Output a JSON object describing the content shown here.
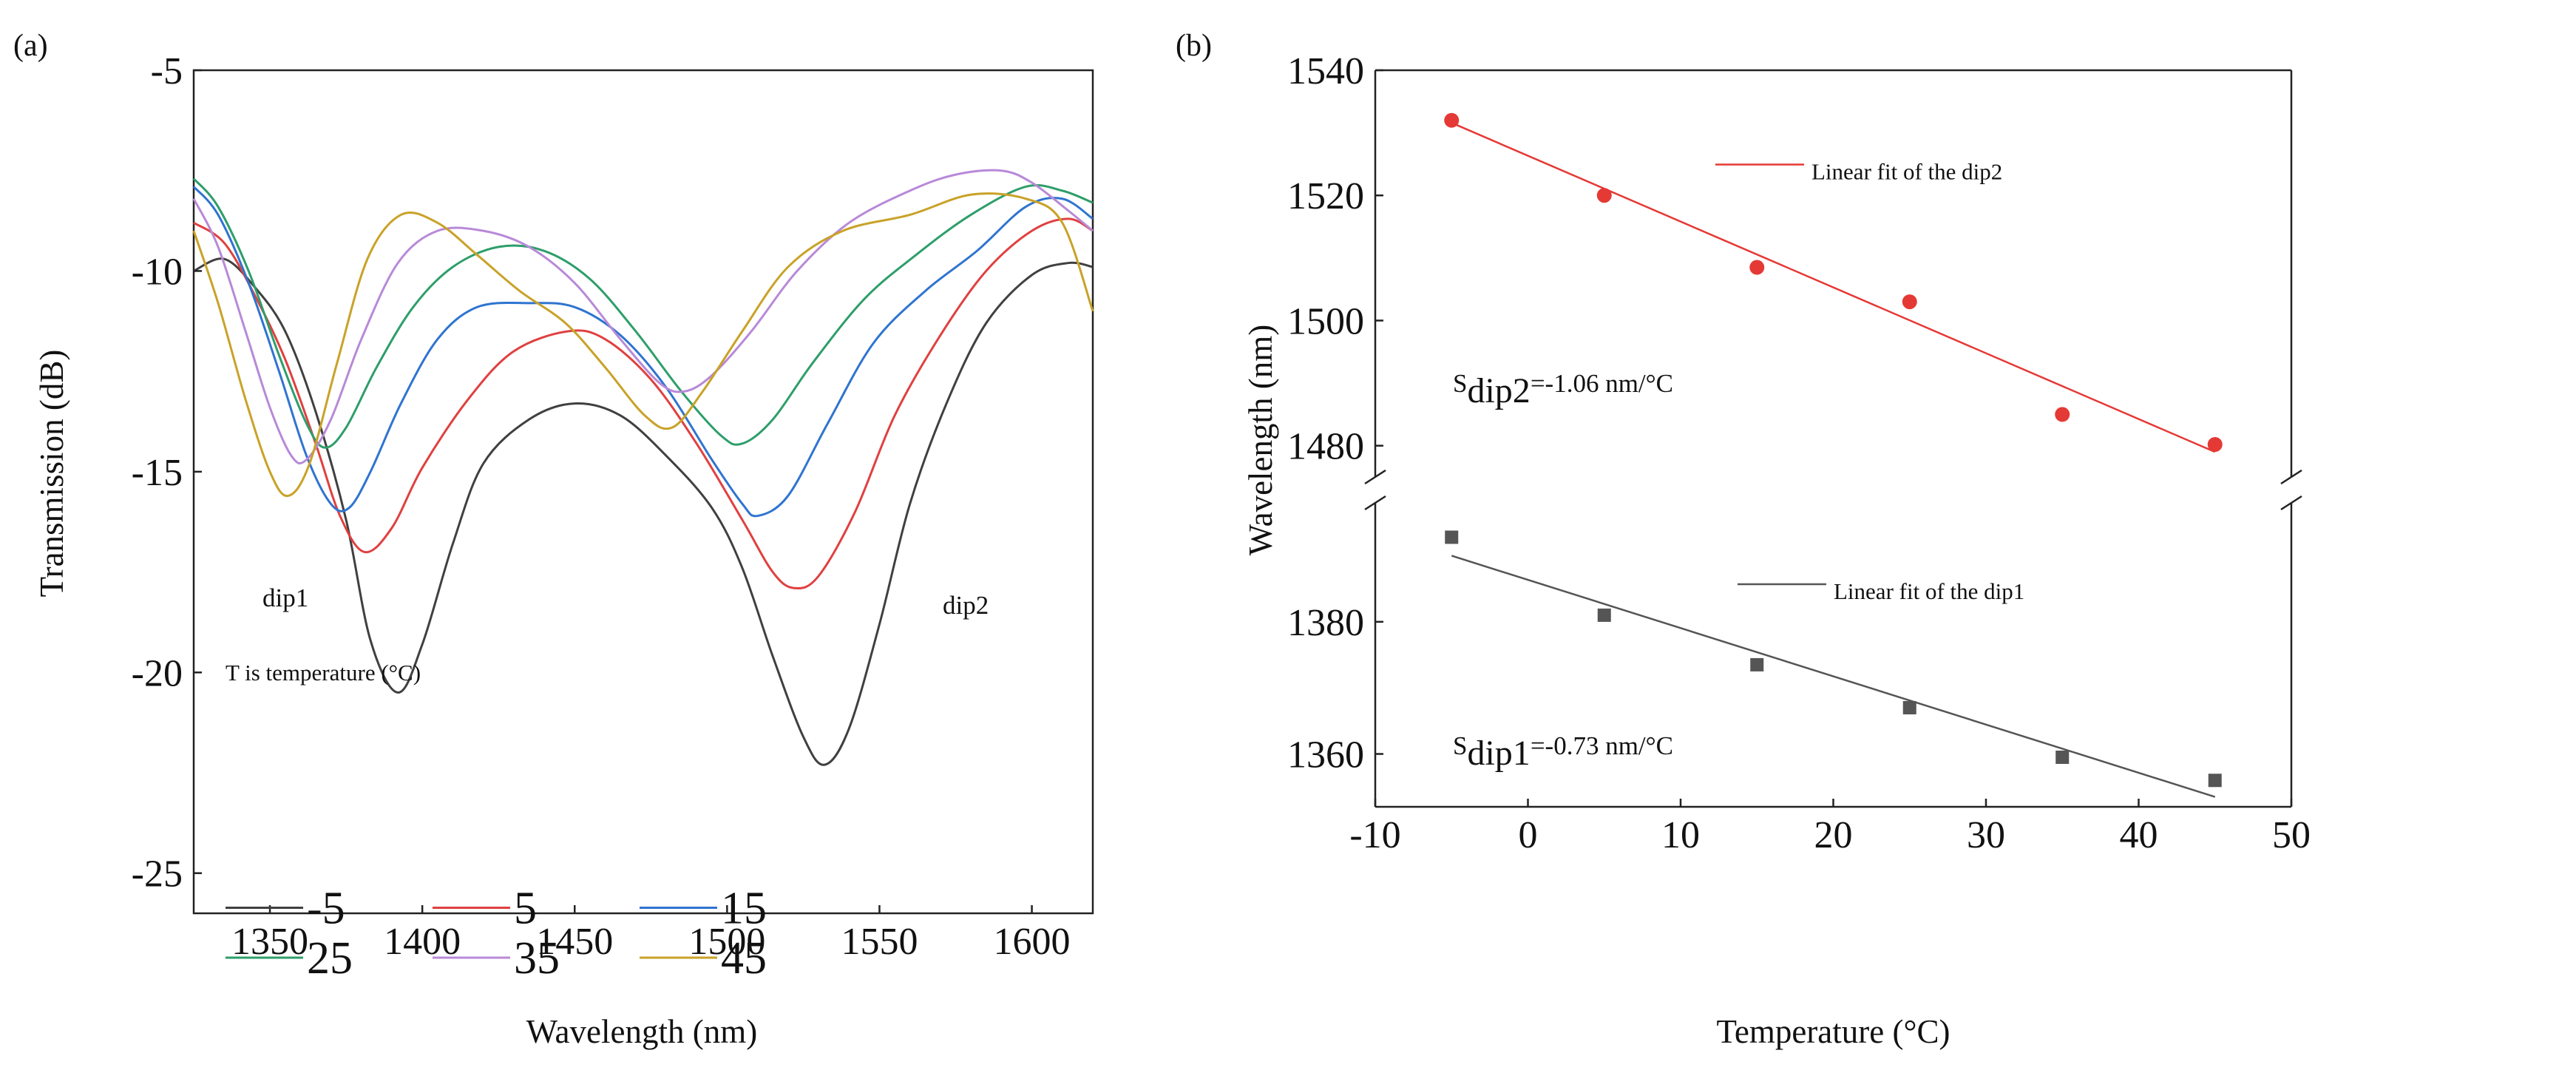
{
  "chart_data": [
    {
      "panel": "(a)",
      "type": "line",
      "xlabel": "Wavelength (nm)",
      "ylabel": "Transmission (dB)",
      "xlim": [
        1325,
        1620
      ],
      "ylim": [
        -26,
        -5
      ],
      "xticks": [
        1350,
        1400,
        1450,
        1500,
        1550,
        1600
      ],
      "yticks": [
        -25,
        -20,
        -15,
        -10,
        -5
      ],
      "annotations": [
        "dip1",
        "dip2"
      ],
      "legend_title": "T is temperature (°C)",
      "series": [
        {
          "name": "-5",
          "color": "#404040",
          "points": [
            [
              1325,
              -10.0
            ],
            [
              1335,
              -9.7
            ],
            [
              1345,
              -10.4
            ],
            [
              1355,
              -11.5
            ],
            [
              1365,
              -13.5
            ],
            [
              1375,
              -16.2
            ],
            [
              1383,
              -19.2
            ],
            [
              1392,
              -20.5
            ],
            [
              1400,
              -19.3
            ],
            [
              1410,
              -16.8
            ],
            [
              1420,
              -14.8
            ],
            [
              1435,
              -13.7
            ],
            [
              1450,
              -13.3
            ],
            [
              1465,
              -13.6
            ],
            [
              1480,
              -14.6
            ],
            [
              1495,
              -15.9
            ],
            [
              1505,
              -17.4
            ],
            [
              1515,
              -19.6
            ],
            [
              1525,
              -21.6
            ],
            [
              1532,
              -22.3
            ],
            [
              1540,
              -21.4
            ],
            [
              1550,
              -18.8
            ],
            [
              1560,
              -15.8
            ],
            [
              1572,
              -13.3
            ],
            [
              1585,
              -11.3
            ],
            [
              1600,
              -10.1
            ],
            [
              1612,
              -9.8
            ],
            [
              1620,
              -9.9
            ]
          ]
        },
        {
          "name": "5",
          "color": "#e04040",
          "points": [
            [
              1325,
              -8.8
            ],
            [
              1335,
              -9.3
            ],
            [
              1345,
              -10.6
            ],
            [
              1355,
              -12.2
            ],
            [
              1365,
              -14.3
            ],
            [
              1373,
              -16.1
            ],
            [
              1381,
              -17.0
            ],
            [
              1390,
              -16.4
            ],
            [
              1400,
              -14.9
            ],
            [
              1415,
              -13.2
            ],
            [
              1430,
              -12.0
            ],
            [
              1448,
              -11.5
            ],
            [
              1460,
              -11.7
            ],
            [
              1475,
              -12.7
            ],
            [
              1490,
              -14.3
            ],
            [
              1505,
              -16.2
            ],
            [
              1515,
              -17.5
            ],
            [
              1522,
              -17.9
            ],
            [
              1530,
              -17.6
            ],
            [
              1542,
              -16.0
            ],
            [
              1555,
              -13.6
            ],
            [
              1570,
              -11.6
            ],
            [
              1585,
              -10.0
            ],
            [
              1600,
              -9.0
            ],
            [
              1612,
              -8.7
            ],
            [
              1620,
              -9.0
            ]
          ]
        },
        {
          "name": "15",
          "color": "#2f74d0",
          "points": [
            [
              1325,
              -7.9
            ],
            [
              1333,
              -8.6
            ],
            [
              1343,
              -10.3
            ],
            [
              1353,
              -12.5
            ],
            [
              1362,
              -14.6
            ],
            [
              1370,
              -15.8
            ],
            [
              1376,
              -15.9
            ],
            [
              1383,
              -15.0
            ],
            [
              1393,
              -13.3
            ],
            [
              1405,
              -11.7
            ],
            [
              1418,
              -10.9
            ],
            [
              1435,
              -10.8
            ],
            [
              1450,
              -10.9
            ],
            [
              1465,
              -11.6
            ],
            [
              1480,
              -12.9
            ],
            [
              1495,
              -14.7
            ],
            [
              1505,
              -15.8
            ],
            [
              1510,
              -16.1
            ],
            [
              1520,
              -15.6
            ],
            [
              1533,
              -13.8
            ],
            [
              1548,
              -11.8
            ],
            [
              1565,
              -10.5
            ],
            [
              1582,
              -9.5
            ],
            [
              1598,
              -8.4
            ],
            [
              1610,
              -8.2
            ],
            [
              1620,
              -8.7
            ]
          ]
        },
        {
          "name": "25",
          "color": "#2e9e6a",
          "points": [
            [
              1325,
              -7.7
            ],
            [
              1333,
              -8.4
            ],
            [
              1343,
              -10.0
            ],
            [
              1353,
              -12.1
            ],
            [
              1362,
              -13.8
            ],
            [
              1368,
              -14.4
            ],
            [
              1375,
              -13.9
            ],
            [
              1385,
              -12.4
            ],
            [
              1397,
              -10.9
            ],
            [
              1410,
              -9.9
            ],
            [
              1425,
              -9.4
            ],
            [
              1440,
              -9.5
            ],
            [
              1455,
              -10.2
            ],
            [
              1470,
              -11.5
            ],
            [
              1485,
              -13.0
            ],
            [
              1498,
              -14.1
            ],
            [
              1505,
              -14.3
            ],
            [
              1515,
              -13.7
            ],
            [
              1528,
              -12.3
            ],
            [
              1545,
              -10.7
            ],
            [
              1562,
              -9.6
            ],
            [
              1580,
              -8.6
            ],
            [
              1598,
              -7.9
            ],
            [
              1610,
              -8.0
            ],
            [
              1620,
              -8.3
            ]
          ]
        },
        {
          "name": "35",
          "color": "#b889d8",
          "points": [
            [
              1325,
              -8.2
            ],
            [
              1333,
              -9.4
            ],
            [
              1342,
              -11.5
            ],
            [
              1350,
              -13.4
            ],
            [
              1357,
              -14.6
            ],
            [
              1362,
              -14.7
            ],
            [
              1370,
              -13.7
            ],
            [
              1380,
              -11.7
            ],
            [
              1392,
              -9.8
            ],
            [
              1405,
              -9.0
            ],
            [
              1420,
              -9.0
            ],
            [
              1435,
              -9.4
            ],
            [
              1450,
              -10.3
            ],
            [
              1465,
              -11.7
            ],
            [
              1478,
              -12.8
            ],
            [
              1486,
              -13.0
            ],
            [
              1495,
              -12.6
            ],
            [
              1508,
              -11.5
            ],
            [
              1523,
              -10.0
            ],
            [
              1540,
              -8.8
            ],
            [
              1560,
              -8.0
            ],
            [
              1575,
              -7.6
            ],
            [
              1590,
              -7.5
            ],
            [
              1600,
              -7.8
            ],
            [
              1612,
              -8.5
            ],
            [
              1620,
              -9.0
            ]
          ]
        },
        {
          "name": "45",
          "color": "#c9a227",
          "points": [
            [
              1325,
              -9.0
            ],
            [
              1333,
              -10.8
            ],
            [
              1342,
              -13.2
            ],
            [
              1350,
              -15.0
            ],
            [
              1356,
              -15.6
            ],
            [
              1363,
              -14.8
            ],
            [
              1372,
              -12.3
            ],
            [
              1382,
              -9.7
            ],
            [
              1393,
              -8.6
            ],
            [
              1405,
              -8.8
            ],
            [
              1418,
              -9.6
            ],
            [
              1432,
              -10.5
            ],
            [
              1447,
              -11.3
            ],
            [
              1460,
              -12.4
            ],
            [
              1473,
              -13.6
            ],
            [
              1482,
              -13.9
            ],
            [
              1492,
              -13.0
            ],
            [
              1505,
              -11.5
            ],
            [
              1520,
              -9.9
            ],
            [
              1538,
              -9.0
            ],
            [
              1560,
              -8.6
            ],
            [
              1580,
              -8.1
            ],
            [
              1598,
              -8.2
            ],
            [
              1610,
              -8.8
            ],
            [
              1620,
              -11.0
            ]
          ]
        }
      ]
    },
    {
      "panel": "(b)",
      "type": "scatter",
      "xlabel": "Temperature (°C)",
      "ylabel": "Wavelength (nm)",
      "xlim": [
        -10,
        50
      ],
      "xticks": [
        -10,
        0,
        10,
        20,
        30,
        40,
        50
      ],
      "broken_y_axis": true,
      "ylim_upper": [
        1475,
        1540
      ],
      "ylim_lower": [
        1352,
        1398
      ],
      "yticks": [
        1360,
        1380,
        1480,
        1500,
        1520,
        1540
      ],
      "series": [
        {
          "name": "dip2",
          "color": "#e53935",
          "marker": "circle",
          "x": [
            -5,
            5,
            15,
            25,
            35,
            45
          ],
          "y": [
            1532.0,
            1520.0,
            1508.5,
            1503.0,
            1485.0,
            1480.2
          ],
          "fit_label": "Linear fit of the dip2",
          "fit_y": [
            1531.6,
            1479.0
          ],
          "sensitivity_prefix": "S",
          "sensitivity_sub": "dip2",
          "sensitivity_suffix": "=-1.06 nm/°C"
        },
        {
          "name": "dip1",
          "color": "#555555",
          "marker": "square",
          "x": [
            -5,
            5,
            15,
            25,
            35,
            45
          ],
          "y": [
            1392.8,
            1381.0,
            1373.5,
            1367.0,
            1359.5,
            1356.0
          ],
          "fit_label": "Linear fit of the dip1",
          "fit_y": [
            1390.0,
            1353.5
          ],
          "sensitivity_prefix": "S",
          "sensitivity_sub": "dip1",
          "sensitivity_suffix": "=-0.73 nm/°C"
        }
      ]
    }
  ]
}
